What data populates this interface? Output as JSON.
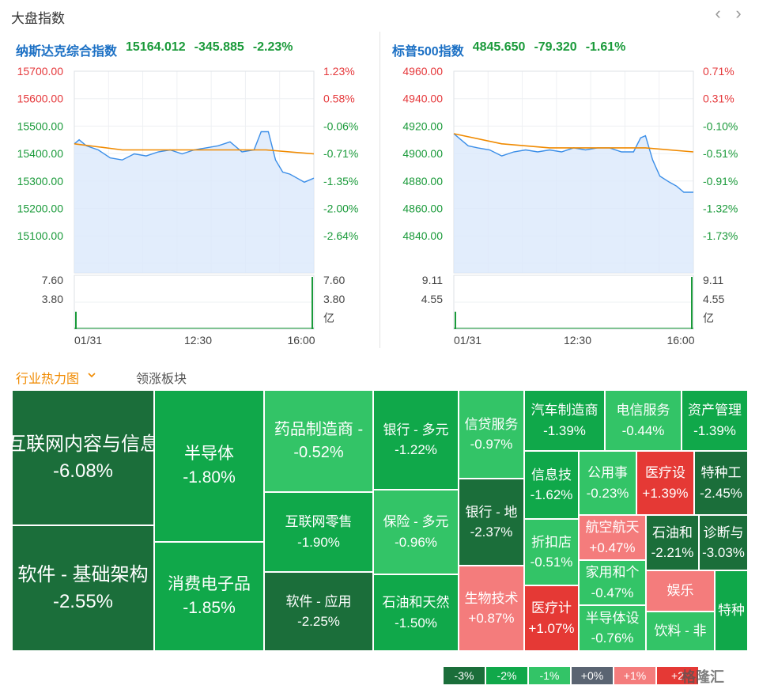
{
  "header": {
    "title": "大盘指数",
    "prev_icon": "chevron-left-icon",
    "next_icon": "chevron-right-icon"
  },
  "charts": [
    {
      "index_name": "纳斯达克综合指数",
      "last": "15164.012",
      "change": "-345.885",
      "change_pct": "-2.23%",
      "price_ticks": [
        "15700.00",
        "15600.00",
        "15500.00",
        "15400.00",
        "15300.00",
        "15200.00",
        "15100.00"
      ],
      "pct_ticks": [
        "1.23%",
        "0.58%",
        "-0.06%",
        "-0.71%",
        "-1.35%",
        "-2.00%",
        "-2.64%"
      ],
      "vol_ticks_left": [
        "7.60",
        "3.80"
      ],
      "vol_ticks_right": [
        "7.60",
        "3.80",
        "亿"
      ],
      "time_ticks": [
        "01/31",
        "12:30",
        "16:00"
      ]
    },
    {
      "index_name": "标普500指数",
      "last": "4845.650",
      "change": "-79.320",
      "change_pct": "-1.61%",
      "price_ticks": [
        "4960.00",
        "4940.00",
        "4920.00",
        "4900.00",
        "4880.00",
        "4860.00",
        "4840.00"
      ],
      "pct_ticks": [
        "0.71%",
        "0.31%",
        "-0.10%",
        "-0.51%",
        "-0.91%",
        "-1.32%",
        "-1.73%"
      ],
      "vol_ticks_left": [
        "9.11",
        "4.55"
      ],
      "vol_ticks_right": [
        "9.11",
        "4.55",
        "亿"
      ],
      "time_ticks": [
        "01/31",
        "12:30",
        "16:00"
      ]
    }
  ],
  "tabs": {
    "active": "行业热力图",
    "other": "领涨板块"
  },
  "heatmap": [
    {
      "name": "互联网内容与信息",
      "pct": "-6.08%",
      "color": "#1b6e3a"
    },
    {
      "name": "软件 - 基础架构",
      "pct": "-2.55%",
      "color": "#1b6e3a"
    },
    {
      "name": "半导体",
      "pct": "-1.80%",
      "color": "#10a84a"
    },
    {
      "name": "消费电子品",
      "pct": "-1.85%",
      "color": "#10a84a"
    },
    {
      "name": "药品制造商 -",
      "pct": "-0.52%",
      "color": "#33c467"
    },
    {
      "name": "互联网零售",
      "pct": "-1.90%",
      "color": "#10a84a"
    },
    {
      "name": "软件 - 应用",
      "pct": "-2.25%",
      "color": "#1b6e3a"
    },
    {
      "name": "银行 - 多元",
      "pct": "-1.22%",
      "color": "#10a84a"
    },
    {
      "name": "保险 - 多元",
      "pct": "-0.96%",
      "color": "#33c467"
    },
    {
      "name": "石油和天然",
      "pct": "-1.50%",
      "color": "#10a84a"
    },
    {
      "name": "信贷服务",
      "pct": "-0.97%",
      "color": "#33c467"
    },
    {
      "name": "银行 - 地",
      "pct": "-2.37%",
      "color": "#1b6e3a"
    },
    {
      "name": "生物技术",
      "pct": "+0.87%",
      "color": "#f47c7c"
    },
    {
      "name": "汽车制造商",
      "pct": "-1.39%",
      "color": "#10a84a"
    },
    {
      "name": "电信服务",
      "pct": "-0.44%",
      "color": "#33c467"
    },
    {
      "name": "资产管理",
      "pct": "-1.39%",
      "color": "#10a84a"
    },
    {
      "name": "信息技",
      "pct": "-1.62%",
      "color": "#10a84a"
    },
    {
      "name": "公用事",
      "pct": "-0.23%",
      "color": "#33c467"
    },
    {
      "name": "医疗设",
      "pct": "+1.39%",
      "color": "#e53935"
    },
    {
      "name": "特种工",
      "pct": "-2.45%",
      "color": "#1b6e3a"
    },
    {
      "name": "折扣店",
      "pct": "-0.51%",
      "color": "#33c467"
    },
    {
      "name": "航空航天",
      "pct": "+0.47%",
      "color": "#f47c7c"
    },
    {
      "name": "石油和",
      "pct": "-2.21%",
      "color": "#1b6e3a"
    },
    {
      "name": "诊断与",
      "pct": "-3.03%",
      "color": "#1b6e3a"
    },
    {
      "name": "家用和个",
      "pct": "-0.47%",
      "color": "#33c467"
    },
    {
      "name": "医疗计",
      "pct": "+1.07%",
      "color": "#e53935"
    },
    {
      "name": "半导体设",
      "pct": "-0.76%",
      "color": "#33c467"
    },
    {
      "name": "娱乐",
      "pct": "",
      "color": "#f47c7c"
    },
    {
      "name": "饮料 - 非",
      "pct": "",
      "color": "#33c467"
    },
    {
      "name": "特种",
      "pct": "",
      "color": "#10a84a"
    }
  ],
  "legend": [
    {
      "label": "-3%",
      "color": "#1b6e3a"
    },
    {
      "label": "-2%",
      "color": "#10a84a"
    },
    {
      "label": "-1%",
      "color": "#33c467"
    },
    {
      "label": "+0%",
      "color": "#5a6472"
    },
    {
      "label": "+1%",
      "color": "#f47c7c"
    },
    {
      "label": "+2",
      "color": "#e53935"
    }
  ],
  "watermark": "格隆汇",
  "colors": {
    "up": "#e5383b",
    "down": "#1a9a3a",
    "line": "#3b8ee8",
    "avg": "#f08a00",
    "volume": "#1a9a3a"
  }
}
